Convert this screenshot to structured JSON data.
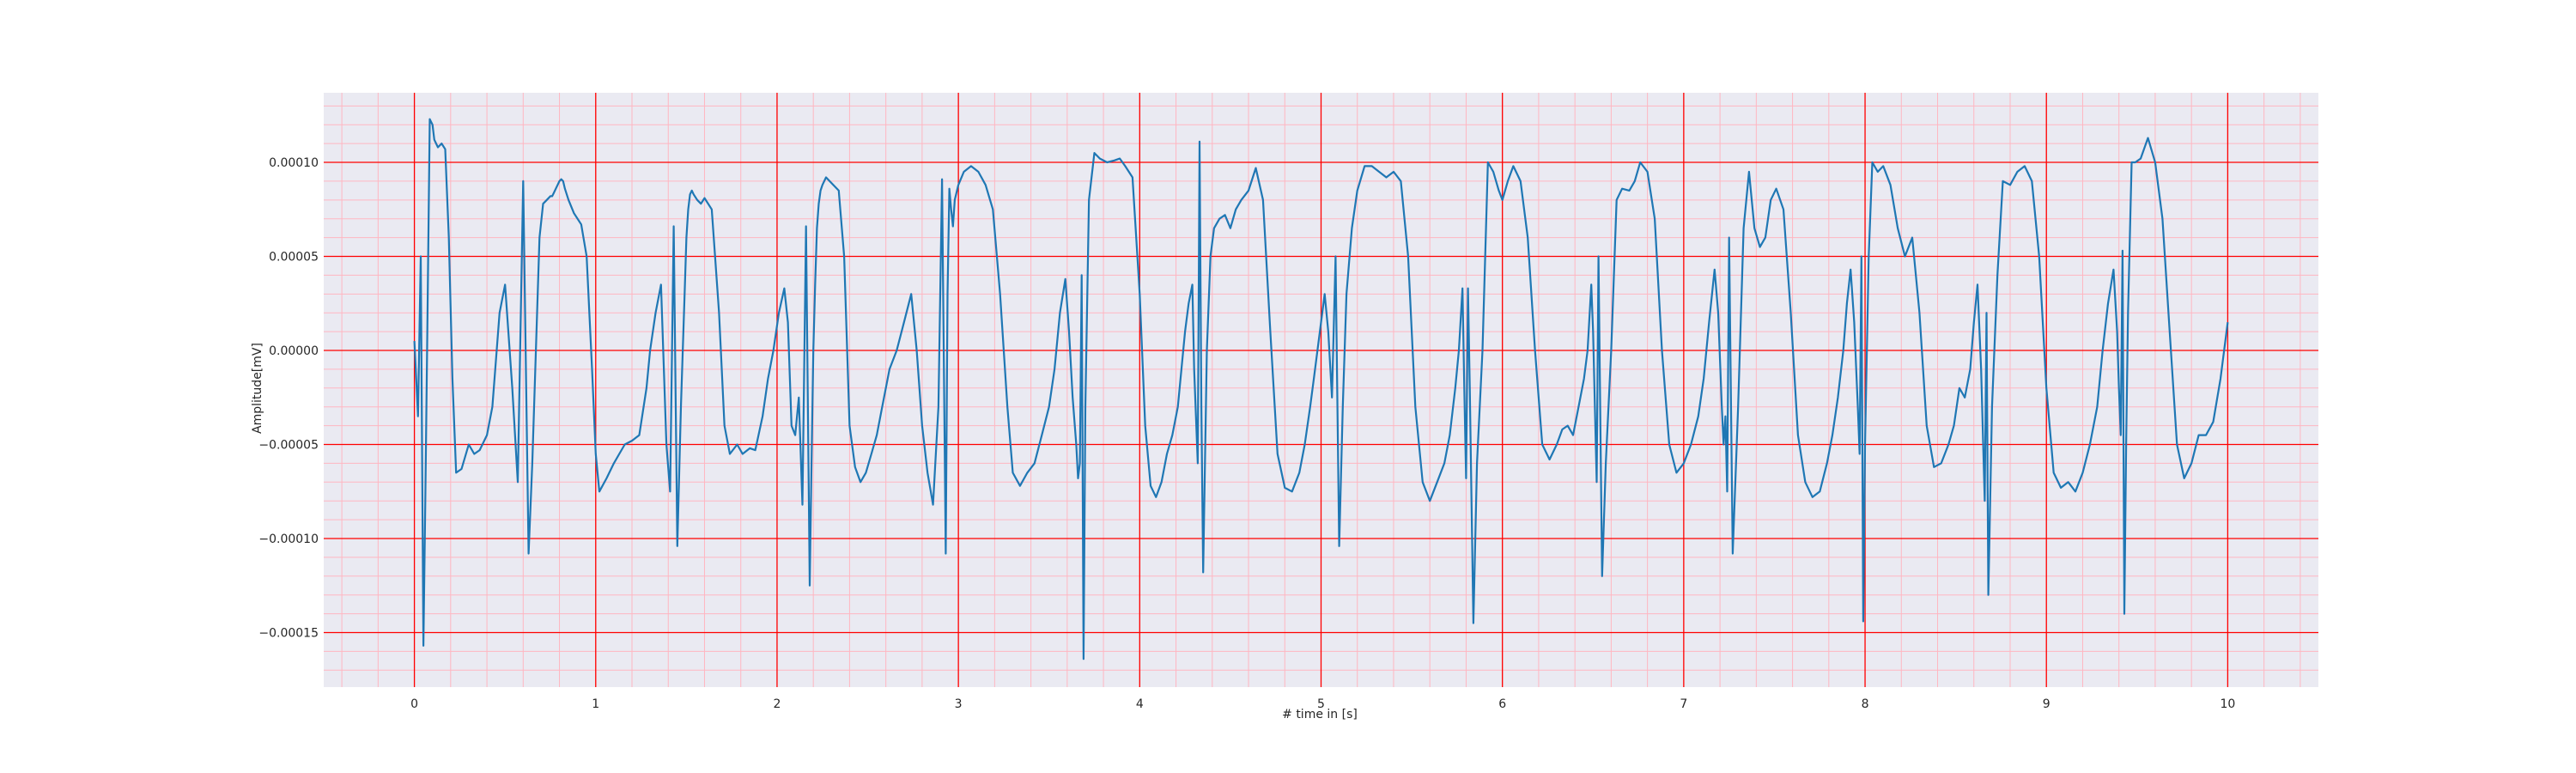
{
  "chart_data": {
    "type": "line",
    "title": "",
    "xlabel": "# time in [s]",
    "ylabel": "Amplitude[mV]",
    "xlim": [
      -0.5,
      10.5
    ],
    "ylim": [
      -0.000179,
      0.000137
    ],
    "xticks": [
      0,
      1,
      2,
      3,
      4,
      5,
      6,
      7,
      8,
      9,
      10
    ],
    "xtick_labels": [
      "0",
      "1",
      "2",
      "3",
      "4",
      "5",
      "6",
      "7",
      "8",
      "9",
      "10"
    ],
    "yticks": [
      0.0001,
      5e-05,
      0.0,
      -5e-05,
      -0.0001,
      -0.00015
    ],
    "ytick_labels": [
      "0.00010",
      "0.00005",
      "0.00000",
      "−0.00005",
      "−0.00010",
      "−0.00015"
    ],
    "grid": true,
    "minor_grid": true,
    "colors": {
      "background": "#eaeaf2",
      "major_grid": "#ff0000",
      "minor_grid": "#ffb6c1",
      "line": "#1f77b4"
    },
    "series": [
      {
        "x": [
          0.0,
          0.02,
          0.035,
          0.05,
          0.06,
          0.07,
          0.085,
          0.1,
          0.11,
          0.12,
          0.13,
          0.15,
          0.17,
          0.19,
          0.21,
          0.23,
          0.26,
          0.3,
          0.33,
          0.36,
          0.4,
          0.43,
          0.47,
          0.5,
          0.54,
          0.57,
          0.6,
          0.63,
          0.65,
          0.67,
          0.69,
          0.71,
          0.73,
          0.75,
          0.76,
          0.77,
          0.78,
          0.79,
          0.8,
          0.81,
          0.82,
          0.83,
          0.85,
          0.88,
          0.92,
          0.95,
          0.98,
          1.0,
          1.02,
          1.06,
          1.1,
          1.13,
          1.16,
          1.2,
          1.24,
          1.28,
          1.3,
          1.33,
          1.36,
          1.39,
          1.41,
          1.43,
          1.45,
          1.47,
          1.49,
          1.5,
          1.51,
          1.52,
          1.53,
          1.54,
          1.56,
          1.58,
          1.6,
          1.64,
          1.68,
          1.71,
          1.74,
          1.78,
          1.81,
          1.85,
          1.88,
          1.92,
          1.95,
          1.98,
          2.01,
          2.04,
          2.06,
          2.08,
          2.1,
          2.12,
          2.14,
          2.16,
          2.18,
          2.19,
          2.2,
          2.21,
          2.22,
          2.23,
          2.24,
          2.25,
          2.27,
          2.29,
          2.31,
          2.34,
          2.37,
          2.4,
          2.43,
          2.46,
          2.49,
          2.52,
          2.55,
          2.58,
          2.62,
          2.66,
          2.7,
          2.74,
          2.77,
          2.8,
          2.83,
          2.86,
          2.89,
          2.91,
          2.93,
          2.94,
          2.95,
          2.96,
          2.97,
          2.98,
          3.0,
          3.03,
          3.07,
          3.11,
          3.15,
          3.19,
          3.23,
          3.27,
          3.3,
          3.34,
          3.38,
          3.42,
          3.46,
          3.5,
          3.53,
          3.56,
          3.59,
          3.61,
          3.63,
          3.65,
          3.66,
          3.67,
          3.68,
          3.69,
          3.7,
          3.72,
          3.75,
          3.78,
          3.82,
          3.86,
          3.89,
          3.92,
          3.96,
          4.0,
          4.03,
          4.06,
          4.09,
          4.12,
          4.15,
          4.18,
          4.21,
          4.23,
          4.25,
          4.27,
          4.29,
          4.3,
          4.31,
          4.32,
          4.33,
          4.34,
          4.35,
          4.36,
          4.37,
          4.39,
          4.41,
          4.44,
          4.47,
          4.5,
          4.53,
          4.56,
          4.6,
          4.64,
          4.68,
          4.72,
          4.76,
          4.8,
          4.84,
          4.88,
          4.91,
          4.94,
          4.96,
          4.98,
          5.0,
          5.02,
          5.04,
          5.06,
          5.08,
          5.1,
          5.12,
          5.14,
          5.17,
          5.2,
          5.24,
          5.28,
          5.32,
          5.36,
          5.4,
          5.44,
          5.48,
          5.52,
          5.56,
          5.6,
          5.64,
          5.68,
          5.71,
          5.74,
          5.76,
          5.78,
          5.79,
          5.8,
          5.81,
          5.82,
          5.84,
          5.86,
          5.89,
          5.92,
          5.95,
          5.98,
          6.0,
          6.03,
          6.06,
          6.1,
          6.14,
          6.18,
          6.22,
          6.26,
          6.3,
          6.33,
          6.36,
          6.39,
          6.42,
          6.45,
          6.47,
          6.49,
          6.5,
          6.51,
          6.52,
          6.53,
          6.55,
          6.57,
          6.6,
          6.63,
          6.66,
          6.7,
          6.73,
          6.76,
          6.8,
          6.84,
          6.88,
          6.92,
          6.96,
          7.0,
          7.04,
          7.08,
          7.11,
          7.14,
          7.17,
          7.19,
          7.21,
          7.22,
          7.23,
          7.24,
          7.25,
          7.27,
          7.3,
          7.33,
          7.36,
          7.39,
          7.42,
          7.45,
          7.48,
          7.51,
          7.55,
          7.59,
          7.63,
          7.67,
          7.71,
          7.75,
          7.79,
          7.82,
          7.85,
          7.88,
          7.9,
          7.92,
          7.94,
          7.96,
          7.97,
          7.98,
          7.99,
          8.0,
          8.02,
          8.04,
          8.07,
          8.1,
          8.14,
          8.18,
          8.22,
          8.26,
          8.3,
          8.34,
          8.38,
          8.42,
          8.46,
          8.49,
          8.52,
          8.55,
          8.58,
          8.6,
          8.62,
          8.64,
          8.65,
          8.66,
          8.67,
          8.68,
          8.7,
          8.73,
          8.76,
          8.8,
          8.84,
          8.88,
          8.92,
          8.96,
          9.0,
          9.04,
          9.08,
          9.12,
          9.16,
          9.2,
          9.24,
          9.28,
          9.31,
          9.34,
          9.37,
          9.39,
          9.4,
          9.41,
          9.42,
          9.43,
          9.44,
          9.45,
          9.47,
          9.49,
          9.52,
          9.56,
          9.6,
          9.64,
          9.68,
          9.72,
          9.76,
          9.8,
          9.84,
          9.88,
          9.92,
          9.96,
          10.0
        ],
        "y": [
          5e-06,
          -3.5e-05,
          5e-05,
          -0.000157,
          -8e-05,
          0.0,
          0.000123,
          0.00012,
          0.000112,
          0.00011,
          0.000108,
          0.00011,
          0.000107,
          6e-05,
          -1.5e-05,
          -6.5e-05,
          -6.3e-05,
          -5e-05,
          -5.5e-05,
          -5.3e-05,
          -4.5e-05,
          -3e-05,
          2e-05,
          3.5e-05,
          -2e-05,
          -7e-05,
          9e-05,
          -0.000108,
          -6e-05,
          0.0,
          6e-05,
          7.8e-05,
          8e-05,
          8.2e-05,
          8.2e-05,
          8.4e-05,
          8.6e-05,
          8.8e-05,
          9e-05,
          9.1e-05,
          9e-05,
          8.6e-05,
          8e-05,
          7.3e-05,
          6.7e-05,
          5e-05,
          -1e-05,
          -5.5e-05,
          -7.5e-05,
          -6.8e-05,
          -6e-05,
          -5.5e-05,
          -5e-05,
          -4.8e-05,
          -4.5e-05,
          -2e-05,
          0.0,
          2e-05,
          3.5e-05,
          -5e-05,
          -7.5e-05,
          6.6e-05,
          -0.000104,
          -3e-05,
          3e-05,
          6e-05,
          7.5e-05,
          8.3e-05,
          8.5e-05,
          8.3e-05,
          8e-05,
          7.8e-05,
          8.1e-05,
          7.5e-05,
          2e-05,
          -4e-05,
          -5.5e-05,
          -5e-05,
          -5.5e-05,
          -5.2e-05,
          -5.3e-05,
          -3.5e-05,
          -1.5e-05,
          0.0,
          2e-05,
          3.3e-05,
          1.5e-05,
          -4e-05,
          -4.5e-05,
          -2.5e-05,
          -8.2e-05,
          6.6e-05,
          -0.000125,
          -6e-05,
          0.0,
          3.5e-05,
          6.5e-05,
          7.8e-05,
          8.5e-05,
          8.8e-05,
          9.2e-05,
          9e-05,
          8.8e-05,
          8.5e-05,
          5e-05,
          -4e-05,
          -6.2e-05,
          -7e-05,
          -6.5e-05,
          -5.5e-05,
          -4.5e-05,
          -3e-05,
          -1e-05,
          0.0,
          1.5e-05,
          3e-05,
          0.0,
          -4e-05,
          -6.5e-05,
          -8.2e-05,
          -3e-05,
          9.1e-05,
          -0.000108,
          3e-05,
          8.6e-05,
          7.5e-05,
          6.6e-05,
          8e-05,
          8.8e-05,
          9.5e-05,
          9.8e-05,
          9.5e-05,
          8.8e-05,
          7.5e-05,
          3e-05,
          -3e-05,
          -6.5e-05,
          -7.2e-05,
          -6.5e-05,
          -6e-05,
          -4.5e-05,
          -3e-05,
          -1e-05,
          2e-05,
          3.8e-05,
          1e-05,
          -2.5e-05,
          -5e-05,
          -6.8e-05,
          -6e-05,
          4e-05,
          -0.000164,
          -3e-05,
          8e-05,
          0.000105,
          0.000102,
          0.0001,
          0.000101,
          0.000102,
          9.8e-05,
          9.2e-05,
          3e-05,
          -4e-05,
          -7.2e-05,
          -7.8e-05,
          -7e-05,
          -5.5e-05,
          -4.5e-05,
          -3e-05,
          -1e-05,
          1e-05,
          2.5e-05,
          3.5e-05,
          -1e-05,
          -3.5e-05,
          -6e-05,
          0.000111,
          -3e-05,
          -0.000118,
          -6e-05,
          0.0,
          5e-05,
          6.5e-05,
          7e-05,
          7.2e-05,
          6.5e-05,
          7.5e-05,
          8e-05,
          8.5e-05,
          9.7e-05,
          8e-05,
          1e-05,
          -5.5e-05,
          -7.3e-05,
          -7.5e-05,
          -6.5e-05,
          -5e-05,
          -3e-05,
          -1.5e-05,
          0.0,
          1.5e-05,
          3e-05,
          1e-05,
          -2.5e-05,
          5e-05,
          -0.000104,
          -3e-05,
          3e-05,
          6.5e-05,
          8.5e-05,
          9.8e-05,
          9.8e-05,
          9.5e-05,
          9.2e-05,
          9.5e-05,
          9e-05,
          5e-05,
          -3e-05,
          -7e-05,
          -8e-05,
          -7e-05,
          -6e-05,
          -4.5e-05,
          -2e-05,
          0.0,
          3.3e-05,
          -2e-05,
          -6.8e-05,
          3.3e-05,
          -2e-05,
          -0.000145,
          -6e-05,
          0.0,
          0.0001,
          9.5e-05,
          8.5e-05,
          8e-05,
          9e-05,
          9.8e-05,
          9e-05,
          6e-05,
          0.0,
          -5e-05,
          -5.8e-05,
          -5e-05,
          -4.2e-05,
          -4e-05,
          -4.5e-05,
          -3e-05,
          -1.5e-05,
          0.0,
          3.5e-05,
          1e-05,
          -3e-05,
          -7e-05,
          5e-05,
          -0.00012,
          -6e-05,
          0.0,
          8e-05,
          8.6e-05,
          8.5e-05,
          9e-05,
          0.0001,
          9.5e-05,
          7e-05,
          0.0,
          -5e-05,
          -6.5e-05,
          -6e-05,
          -5e-05,
          -3.5e-05,
          -1.5e-05,
          1.5e-05,
          4.3e-05,
          2e-05,
          -3e-05,
          -5e-05,
          -3.5e-05,
          -7.5e-05,
          6e-05,
          -0.000108,
          -3e-05,
          6.5e-05,
          9.5e-05,
          6.5e-05,
          5.5e-05,
          6e-05,
          8e-05,
          8.6e-05,
          7.5e-05,
          2e-05,
          -4.5e-05,
          -7e-05,
          -7.8e-05,
          -7.5e-05,
          -6e-05,
          -4.5e-05,
          -2.5e-05,
          0.0,
          2.5e-05,
          4.3e-05,
          1.5e-05,
          -3e-05,
          -5.5e-05,
          5e-05,
          -0.000144,
          -5e-05,
          5e-05,
          0.0001,
          9.5e-05,
          9.8e-05,
          8.8e-05,
          6.5e-05,
          5e-05,
          6e-05,
          2e-05,
          -4e-05,
          -6.2e-05,
          -6e-05,
          -5e-05,
          -4e-05,
          -2e-05,
          -2.5e-05,
          -1e-05,
          1.5e-05,
          3.5e-05,
          -1e-05,
          -4.5e-05,
          -8e-05,
          2e-05,
          -0.00013,
          -3e-05,
          4e-05,
          9e-05,
          8.8e-05,
          9.5e-05,
          9.8e-05,
          9e-05,
          5e-05,
          -2e-05,
          -6.5e-05,
          -7.3e-05,
          -7e-05,
          -7.5e-05,
          -6.5e-05,
          -5e-05,
          -3e-05,
          0.0,
          2.5e-05,
          4.3e-05,
          1e-05,
          -2e-05,
          -4.5e-05,
          5.3e-05,
          -0.00014,
          -5e-05,
          2e-05,
          0.0001,
          0.0001,
          0.000102,
          0.000113,
          0.0001,
          7e-05,
          1e-05,
          -5e-05,
          -6.8e-05,
          -6e-05,
          -4.5e-05,
          -4.5e-05,
          -3.8e-05,
          -1.5e-05,
          1.5e-05
        ]
      }
    ]
  }
}
